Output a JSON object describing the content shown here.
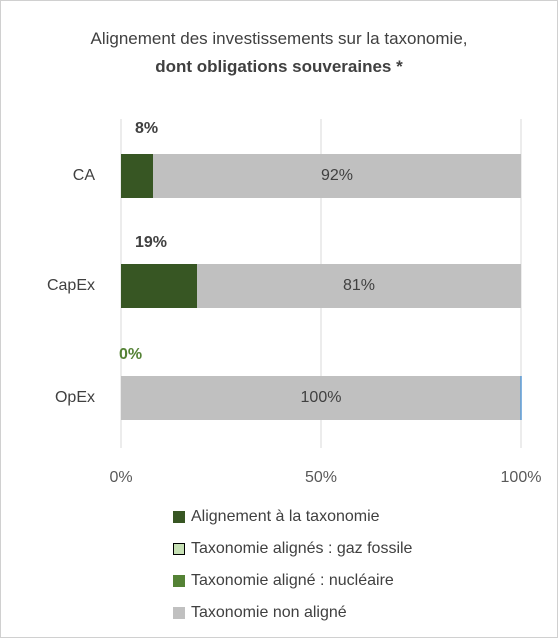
{
  "chart_data": {
    "type": "bar",
    "orientation": "horizontal",
    "stacked": "percent",
    "title": "Alignement des investissements sur la taxonomie,",
    "subtitle": "dont obligations souveraines *",
    "categories": [
      "CA",
      "CapEx",
      "OpEx"
    ],
    "series": [
      {
        "name": "Alignement à la taxonomie",
        "values": [
          8,
          19,
          0
        ],
        "labels": [
          "8%",
          "19%",
          "0%"
        ],
        "color": "#375623",
        "label_color": "#404040"
      },
      {
        "name": "Taxonomie alignés : gaz fossile",
        "values": [
          0,
          0,
          0
        ],
        "color": "#c6e0b4",
        "border": "#000000"
      },
      {
        "name": "Taxonomie aligné : nucléaire",
        "values": [
          0,
          0,
          0
        ],
        "color": "#548235"
      },
      {
        "name": "Taxonomie non aligné",
        "values": [
          92,
          81,
          100
        ],
        "labels": [
          "92%",
          "81%",
          "100%"
        ],
        "color": "#c0c0c0"
      }
    ],
    "xlim": [
      0,
      100
    ],
    "x_ticks": [
      "0%",
      "50%",
      "100%"
    ],
    "grid": true,
    "legend_position": "bottom"
  },
  "colors": {
    "aligned_zero_label": "#548235",
    "gridline": "#d9d9d9",
    "opex_edge": "#5b9bd5"
  }
}
